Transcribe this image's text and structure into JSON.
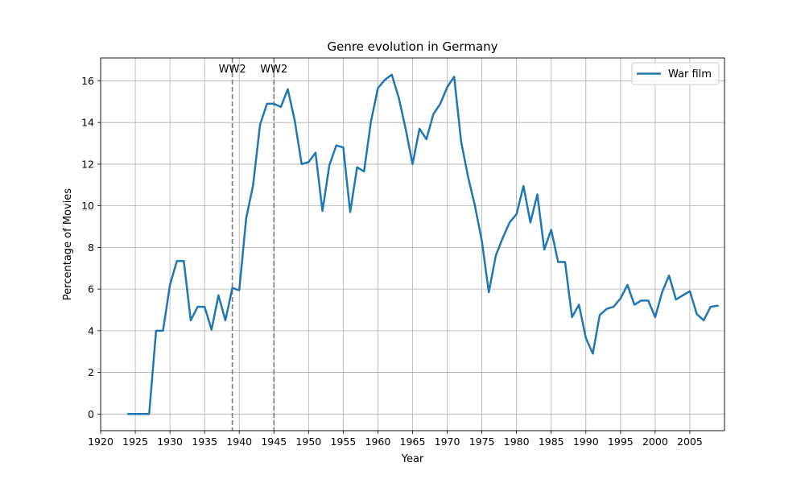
{
  "chart_data": {
    "type": "line",
    "title": "Genre evolution in Germany",
    "xlabel": "Year",
    "ylabel": "Percentage of Movies",
    "xlim": [
      1920,
      2010
    ],
    "ylim": [
      -0.8,
      17.1
    ],
    "xticks": [
      1920,
      1925,
      1930,
      1935,
      1940,
      1945,
      1950,
      1955,
      1960,
      1965,
      1970,
      1975,
      1980,
      1985,
      1990,
      1995,
      2000,
      2005
    ],
    "yticks": [
      0,
      2,
      4,
      6,
      8,
      10,
      12,
      14,
      16
    ],
    "grid": true,
    "legend_position": "top-right",
    "series": [
      {
        "name": "War film",
        "color": "#1f77b4",
        "x": [
          1924,
          1925,
          1926,
          1927,
          1928,
          1929,
          1930,
          1931,
          1932,
          1933,
          1934,
          1935,
          1936,
          1937,
          1938,
          1939,
          1940,
          1941,
          1942,
          1943,
          1944,
          1945,
          1946,
          1947,
          1948,
          1949,
          1950,
          1951,
          1952,
          1953,
          1954,
          1955,
          1956,
          1957,
          1958,
          1959,
          1960,
          1961,
          1962,
          1963,
          1964,
          1965,
          1966,
          1967,
          1968,
          1969,
          1970,
          1971,
          1972,
          1973,
          1974,
          1975,
          1976,
          1977,
          1978,
          1979,
          1980,
          1981,
          1982,
          1983,
          1984,
          1985,
          1986,
          1987,
          1988,
          1989,
          1990,
          1991,
          1992,
          1993,
          1994,
          1995,
          1996,
          1997,
          1998,
          1999,
          2000,
          2001,
          2002,
          2003,
          2004,
          2005,
          2006,
          2007,
          2008,
          2009
        ],
        "y": [
          0,
          0,
          0,
          0,
          4.0,
          4.0,
          6.2,
          7.35,
          7.35,
          4.5,
          5.15,
          5.15,
          4.05,
          5.7,
          4.5,
          6.05,
          5.95,
          9.4,
          11.0,
          13.9,
          14.9,
          14.9,
          14.75,
          15.6,
          14.1,
          12.0,
          12.1,
          12.55,
          9.75,
          11.95,
          12.9,
          12.8,
          9.7,
          11.85,
          11.65,
          14.05,
          15.65,
          16.05,
          16.3,
          15.2,
          13.7,
          12.0,
          13.7,
          13.2,
          14.4,
          14.9,
          15.7,
          16.2,
          13.1,
          11.4,
          10.0,
          8.3,
          5.85,
          7.6,
          8.45,
          9.2,
          9.6,
          10.95,
          9.2,
          10.55,
          7.9,
          8.85,
          7.3,
          7.3,
          4.65,
          5.25,
          3.65,
          2.9,
          4.75,
          5.05,
          5.15,
          5.55,
          6.2,
          5.25,
          5.45,
          5.45,
          4.65,
          5.85,
          6.65,
          5.5,
          5.7,
          5.9,
          4.8,
          4.5,
          5.15,
          5.2
        ]
      }
    ],
    "vlines": [
      {
        "x": 1939,
        "label": "WW2"
      },
      {
        "x": 1945,
        "label": "WW2"
      }
    ]
  }
}
